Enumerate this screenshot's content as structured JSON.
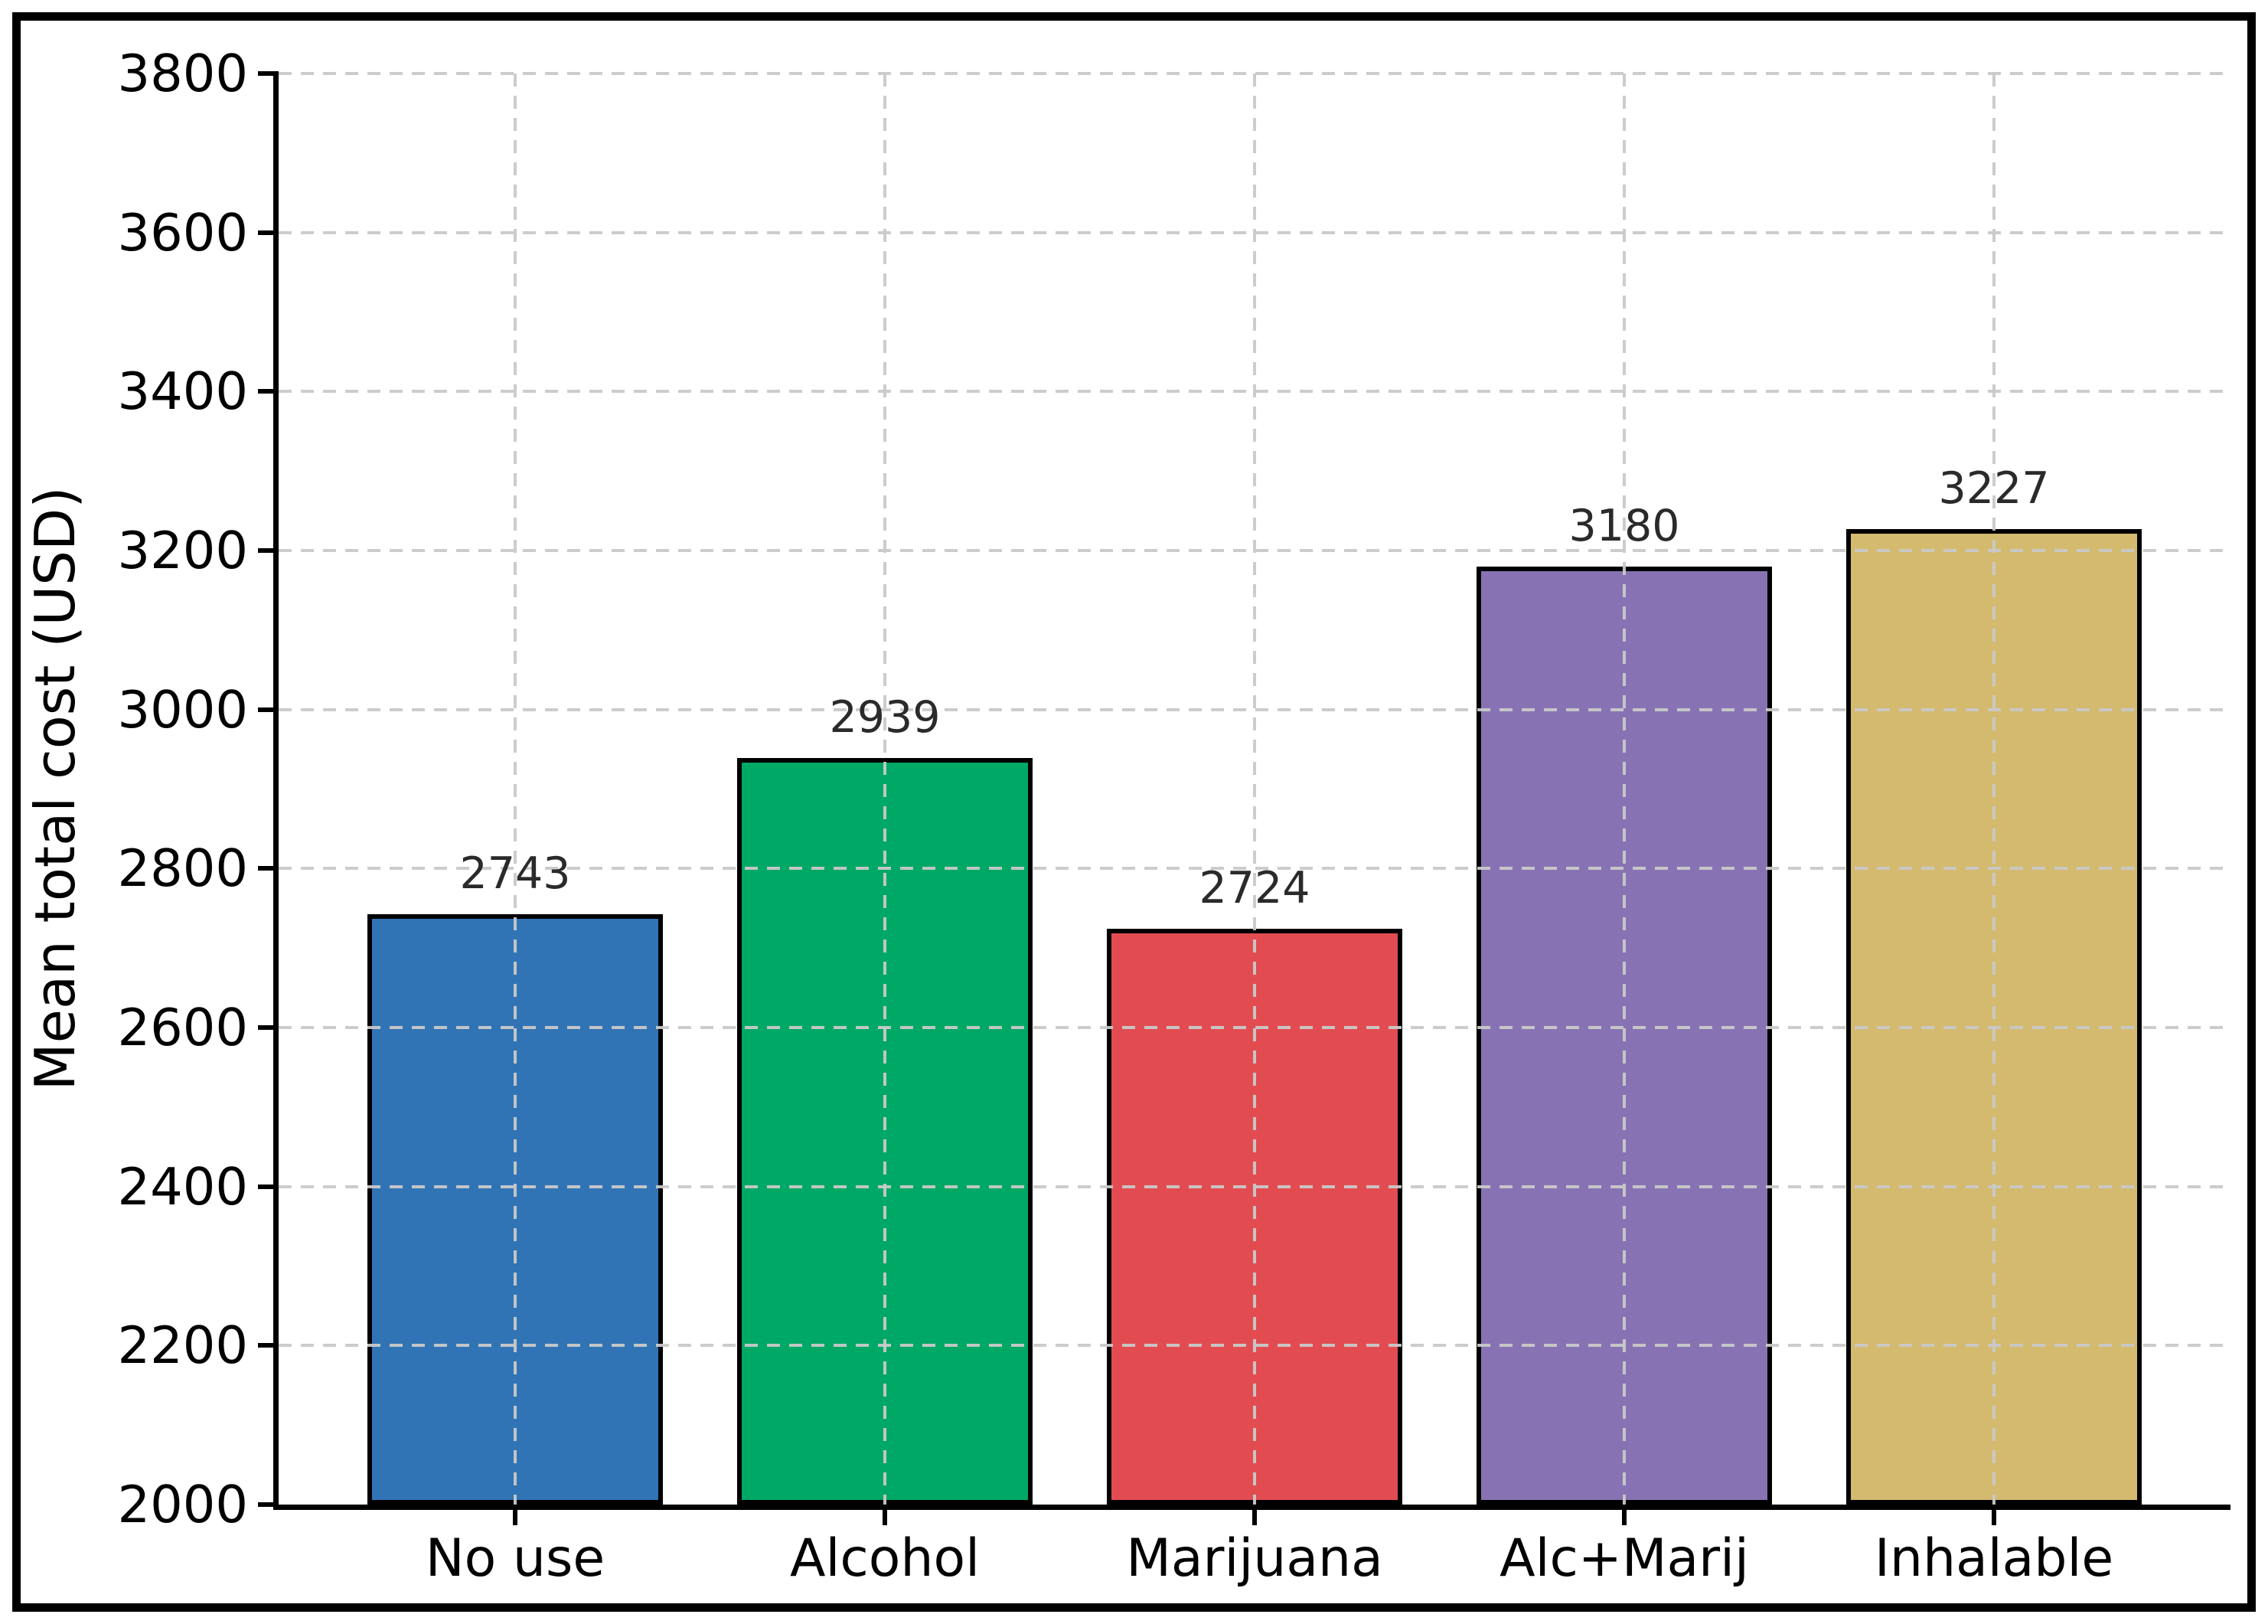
{
  "chart_data": {
    "type": "bar",
    "title": "",
    "categories": [
      "No use",
      "Alcohol",
      "Marijuana",
      "Alc+Marij",
      "Inhalable"
    ],
    "values": [
      2743,
      2939,
      2724,
      3180,
      3227
    ],
    "value_labels": [
      "2743",
      "2939",
      "2724",
      "3180",
      "3227"
    ],
    "bar_colors": [
      "#3174B5",
      "#00A865",
      "#E24C51",
      "#8773B3",
      "#D3BA6F"
    ],
    "bar_edge_color": "#000000",
    "xlabel": "",
    "ylabel": "Mean total cost (USD)",
    "ylim": [
      2000,
      3800
    ],
    "ytick_step": 200,
    "ytick_labels": [
      "2000",
      "2200",
      "2400",
      "2600",
      "2800",
      "3000",
      "3200",
      "3400",
      "3600",
      "3800"
    ],
    "grid": "dashed",
    "grid_color": "#C9C9C9",
    "legend_position": "none"
  }
}
